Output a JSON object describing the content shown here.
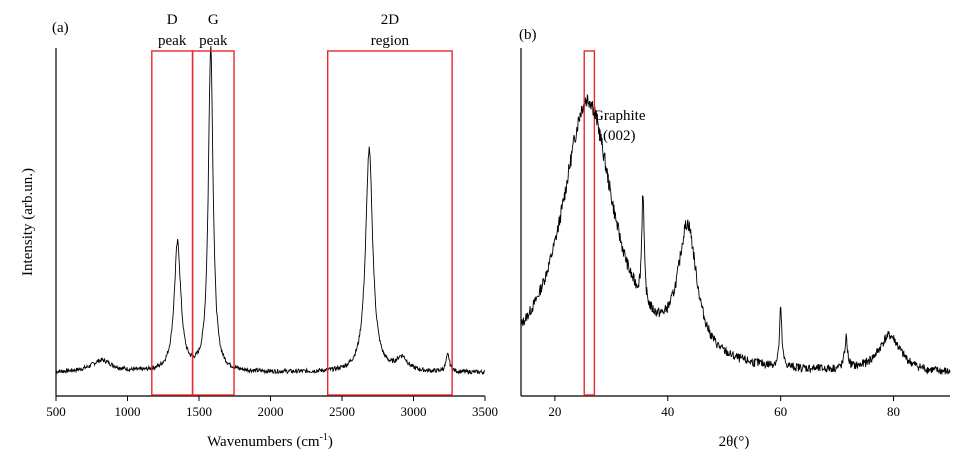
{
  "chart_data": [
    {
      "type": "line",
      "panel_label": "(a)",
      "xlabel": "Wavenumbers (cm",
      "xlabel_sup": "-1",
      "xlabel_end": ")",
      "ylabel": "Intensity (arb.un.)",
      "xlim": [
        500,
        3500
      ],
      "xticks": [
        "500",
        "1000",
        "1500",
        "2000",
        "2500",
        "3000",
        "3500"
      ],
      "grid": false,
      "baseline": 0.04,
      "noise": 0.006,
      "peaks": [
        {
          "center": 820,
          "height": 0.035,
          "width": 90
        },
        {
          "center": 1350,
          "height": 0.38,
          "width": 28
        },
        {
          "center": 1582,
          "height": 0.97,
          "width": 20
        },
        {
          "center": 2690,
          "height": 0.66,
          "width": 30
        },
        {
          "center": 2920,
          "height": 0.04,
          "width": 45
        },
        {
          "center": 3240,
          "height": 0.05,
          "width": 15
        }
      ],
      "boxes": [
        {
          "x_from": 1170,
          "x_to": 1455,
          "label_line1": "D",
          "label_line2": "peak"
        },
        {
          "x_from": 1455,
          "x_to": 1745,
          "label_line1": "G",
          "label_line2": "peak"
        },
        {
          "x_from": 2400,
          "x_to": 3270,
          "label_line1": "2D",
          "label_line2": "region"
        }
      ]
    },
    {
      "type": "line",
      "panel_label": "(b)",
      "xlabel": "2θ(°)",
      "ylabel": "",
      "xlim": [
        14,
        90
      ],
      "xticks": [
        "20",
        "40",
        "60",
        "80"
      ],
      "grid": false,
      "baseline": 0.03,
      "noise": 0.012,
      "peaks": [
        {
          "center": 25.8,
          "height": 0.82,
          "width": 5.6
        },
        {
          "center": 35.6,
          "height": 0.33,
          "width": 0.25
        },
        {
          "center": 43.5,
          "height": 0.38,
          "width": 2.0
        },
        {
          "center": 60.0,
          "height": 0.17,
          "width": 0.25
        },
        {
          "center": 71.6,
          "height": 0.09,
          "width": 0.3
        },
        {
          "center": 79.3,
          "height": 0.11,
          "width": 2.4
        }
      ],
      "boxes": [
        {
          "x_from": 25.2,
          "x_to": 27.0
        }
      ],
      "annotation_line1": "Graphite",
      "annotation_line2": "(002)"
    }
  ],
  "colors": {
    "line": "#000000",
    "box": "#e8282a"
  }
}
